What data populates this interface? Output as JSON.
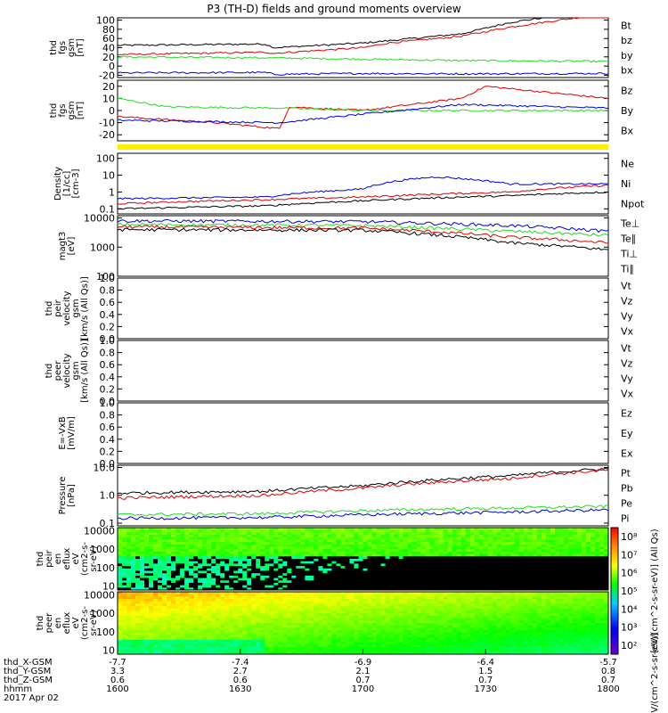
{
  "title": "P3 (TH-D) fields and ground moments overview",
  "colors": {
    "black": "#000000",
    "red": "#e00000",
    "green": "#22dd22",
    "blue": "#0000dd",
    "yellow": "#ffee00"
  },
  "chart_data": [
    {
      "type": "line",
      "ylabel": [
        "thd",
        "fgs",
        "gsm",
        "[nT]"
      ],
      "ylim": [
        -25,
        105
      ],
      "yticks": [
        "100",
        "80",
        "60",
        "40",
        "20",
        "0",
        "-20"
      ],
      "legend": [
        {
          "name": "Bt",
          "color": "black"
        },
        {
          "name": "bz",
          "color": "red"
        },
        {
          "name": "by",
          "color": "green"
        },
        {
          "name": "bx",
          "color": "blue"
        }
      ],
      "series": [
        {
          "name": "Bt",
          "color": "black",
          "x": [
            0,
            0.3,
            0.32,
            0.5,
            0.55,
            0.7,
            0.8,
            0.9,
            1
          ],
          "y": [
            45,
            48,
            40,
            50,
            55,
            70,
            95,
            110,
            120
          ]
        },
        {
          "name": "bz",
          "color": "red",
          "x": [
            0,
            0.3,
            0.32,
            0.5,
            0.55,
            0.7,
            0.8,
            0.9,
            1
          ],
          "y": [
            25,
            30,
            28,
            40,
            50,
            65,
            85,
            100,
            115
          ]
        },
        {
          "name": "by",
          "color": "green",
          "x": [
            0,
            0.3,
            0.5,
            0.7,
            1
          ],
          "y": [
            20,
            18,
            15,
            12,
            10
          ]
        },
        {
          "name": "bx",
          "color": "blue",
          "x": [
            0,
            0.3,
            0.32,
            0.5,
            0.7,
            1
          ],
          "y": [
            -15,
            -14,
            -18,
            -16,
            -17,
            -16
          ]
        }
      ]
    },
    {
      "type": "line",
      "ylabel": [
        "thd",
        "fgs",
        "gsm",
        "[nT]"
      ],
      "ylim": [
        -25,
        25
      ],
      "yticks": [
        "20",
        "10",
        "0",
        "-10",
        "-20"
      ],
      "legend": [
        {
          "name": "Bz",
          "color": "red"
        },
        {
          "name": "By",
          "color": "green"
        },
        {
          "name": "Bx",
          "color": "blue"
        }
      ],
      "series": [
        {
          "name": "Bz",
          "color": "red",
          "x": [
            0,
            0.2,
            0.33,
            0.35,
            0.5,
            0.7,
            0.75,
            1
          ],
          "y": [
            -5,
            -10,
            -15,
            3,
            0,
            10,
            20,
            10
          ]
        },
        {
          "name": "By",
          "color": "green",
          "x": [
            0,
            0.1,
            0.33,
            0.5,
            0.7,
            1
          ],
          "y": [
            10,
            3,
            2,
            0,
            0,
            0
          ]
        },
        {
          "name": "Bx",
          "color": "blue",
          "x": [
            0,
            0.33,
            0.5,
            0.7,
            1
          ],
          "y": [
            -8,
            -10,
            -3,
            5,
            2
          ]
        }
      ]
    },
    {
      "type": "line",
      "ylabel": [
        "Density",
        "[1/cc]",
        "[cm-3]"
      ],
      "yscale": "log",
      "ylim": [
        0.05,
        200
      ],
      "yticks": [
        "100",
        "10",
        "1",
        "0.1"
      ],
      "legend": [
        {
          "name": "Ne",
          "color": "red"
        },
        {
          "name": "Ni",
          "color": "black"
        },
        {
          "name": "Npot",
          "color": "blue"
        }
      ],
      "series": [
        {
          "name": "Npot",
          "color": "blue",
          "x": [
            0,
            0.3,
            0.5,
            0.65,
            0.8,
            1
          ],
          "y": [
            0.4,
            0.5,
            1.5,
            8,
            3,
            3
          ]
        },
        {
          "name": "Ne",
          "color": "red",
          "x": [
            0,
            0.3,
            0.5,
            0.8,
            1
          ],
          "y": [
            0.2,
            0.35,
            0.5,
            1.0,
            2.5
          ]
        },
        {
          "name": "Ni",
          "color": "black",
          "x": [
            0,
            0.3,
            0.5,
            0.8,
            1
          ],
          "y": [
            0.1,
            0.15,
            0.3,
            0.6,
            1.0
          ]
        }
      ]
    },
    {
      "type": "line",
      "ylabel": [
        "magt3",
        "[eV]"
      ],
      "yscale": "log",
      "ylim": [
        100,
        12000
      ],
      "yticks": [
        "10000",
        "1000",
        "100"
      ],
      "legend": [
        {
          "name": "Te⊥",
          "color": "red"
        },
        {
          "name": "Te∥",
          "color": "black"
        },
        {
          "name": "Ti⊥",
          "color": "blue"
        },
        {
          "name": "Ti∥",
          "color": "green"
        }
      ],
      "series": [
        {
          "name": "Ti⊥",
          "color": "blue",
          "x": [
            0,
            0.5,
            0.8,
            1
          ],
          "y": [
            8000,
            7500,
            5500,
            3500
          ]
        },
        {
          "name": "Ti∥",
          "color": "green",
          "x": [
            0,
            0.5,
            0.8,
            1
          ],
          "y": [
            6000,
            5500,
            3500,
            2500
          ]
        },
        {
          "name": "Te⊥",
          "color": "red",
          "x": [
            0,
            0.5,
            0.8,
            1
          ],
          "y": [
            5000,
            4500,
            2200,
            1400
          ]
        },
        {
          "name": "Te∥",
          "color": "black",
          "x": [
            0,
            0.5,
            0.8,
            1
          ],
          "y": [
            4000,
            3800,
            1400,
            800
          ]
        }
      ]
    },
    {
      "type": "line",
      "ylabel": [
        "thd",
        "peir",
        "velocity",
        "gsm",
        "[km/s (All Qs)]"
      ],
      "ylim": [
        0,
        1
      ],
      "yticks": [
        "1.0",
        "0.8",
        "0.6",
        "0.4",
        "0.2",
        "0.0"
      ],
      "legend": [
        {
          "name": "Vt",
          "color": "black"
        },
        {
          "name": "Vz",
          "color": "red"
        },
        {
          "name": "Vy",
          "color": "green"
        },
        {
          "name": "Vx",
          "color": "blue"
        }
      ],
      "series": []
    },
    {
      "type": "line",
      "ylabel": [
        "thd",
        "peer",
        "velocity",
        "gsm",
        "[km/s (All Qs)]"
      ],
      "ylim": [
        0,
        1
      ],
      "yticks": [
        "1.0",
        "0.8",
        "0.6",
        "0.4",
        "0.2",
        "0.0"
      ],
      "legend": [
        {
          "name": "Vt",
          "color": "black"
        },
        {
          "name": "Vz",
          "color": "red"
        },
        {
          "name": "Vy",
          "color": "green"
        },
        {
          "name": "Vx",
          "color": "blue"
        }
      ],
      "series": []
    },
    {
      "type": "line",
      "ylabel": [
        "E=-VxB",
        "[mV/m]"
      ],
      "ylim": [
        0,
        1
      ],
      "yticks": [
        "1.0",
        "0.8",
        "0.6",
        "0.4",
        "0.2",
        "0.0"
      ],
      "legend": [
        {
          "name": "Ez",
          "color": "red"
        },
        {
          "name": "Ey",
          "color": "green"
        },
        {
          "name": "Ex",
          "color": "blue"
        }
      ],
      "series": []
    },
    {
      "type": "line",
      "ylabel": [
        "Pressure",
        "[nPa]"
      ],
      "yscale": "log",
      "ylim": [
        0.08,
        12
      ],
      "yticks": [
        "10.0",
        "1.0",
        "0.1"
      ],
      "legend": [
        {
          "name": "Pt",
          "color": "black"
        },
        {
          "name": "Pb",
          "color": "red"
        },
        {
          "name": "Pe",
          "color": "green"
        },
        {
          "name": "Pi",
          "color": "blue"
        }
      ],
      "series": [
        {
          "name": "Pt",
          "color": "black",
          "x": [
            0,
            0.3,
            0.5,
            0.8,
            1
          ],
          "y": [
            1.2,
            1.4,
            2.2,
            5,
            9
          ]
        },
        {
          "name": "Pb",
          "color": "red",
          "x": [
            0,
            0.3,
            0.5,
            0.8,
            1
          ],
          "y": [
            0.8,
            1.0,
            1.8,
            4,
            8
          ]
        },
        {
          "name": "Pe",
          "color": "green",
          "x": [
            0,
            0.3,
            0.5,
            0.8,
            1
          ],
          "y": [
            0.2,
            0.22,
            0.28,
            0.35,
            0.4
          ]
        },
        {
          "name": "Pi",
          "color": "blue",
          "x": [
            0,
            0.3,
            0.5,
            0.8,
            1
          ],
          "y": [
            0.15,
            0.16,
            0.2,
            0.25,
            0.3
          ]
        }
      ]
    },
    {
      "type": "heatmap",
      "ylabel": [
        "thd",
        "peir",
        "en",
        "eflux",
        "eV",
        "(cm2-s-",
        "sr-eV)"
      ],
      "yscale": "log",
      "ylim": [
        6,
        15000
      ],
      "yticks": [
        "10000",
        "1000",
        "100",
        "10"
      ]
    },
    {
      "type": "heatmap",
      "ylabel": [
        "thd",
        "peer",
        "en",
        "eflux",
        "eV",
        "(cm2-s-",
        "sr-eV)"
      ],
      "yscale": "log",
      "ylim": [
        6,
        15000
      ],
      "yticks": [
        "10000",
        "1000",
        "100",
        "10"
      ]
    }
  ],
  "colorbar": {
    "ticks": [
      "10⁸",
      "10⁷",
      "10⁶",
      "10⁵",
      "10⁴",
      "10³",
      "10²"
    ],
    "label_top": "[eV/(cm^2-s-sr-eV)] (All Qs)",
    "label_bottom": "[eV/(cm^2-s-sr-eV)]"
  },
  "xaxis": {
    "rows": [
      {
        "label": "thd_X-GSM",
        "values": [
          "-7.7",
          "-7.4",
          "-6.9",
          "-6.4",
          "-5.7"
        ]
      },
      {
        "label": "thd_Y-GSM",
        "values": [
          "3.3",
          "2.7",
          "2.1",
          "1.5",
          "0.8"
        ]
      },
      {
        "label": "thd_Z-GSM",
        "values": [
          "0.6",
          "0.6",
          "0.7",
          "0.7",
          "0.7"
        ]
      },
      {
        "label": "hhmm",
        "values": [
          "1600",
          "1630",
          "1700",
          "1730",
          "1800"
        ]
      }
    ],
    "date": "2017 Apr 02"
  }
}
